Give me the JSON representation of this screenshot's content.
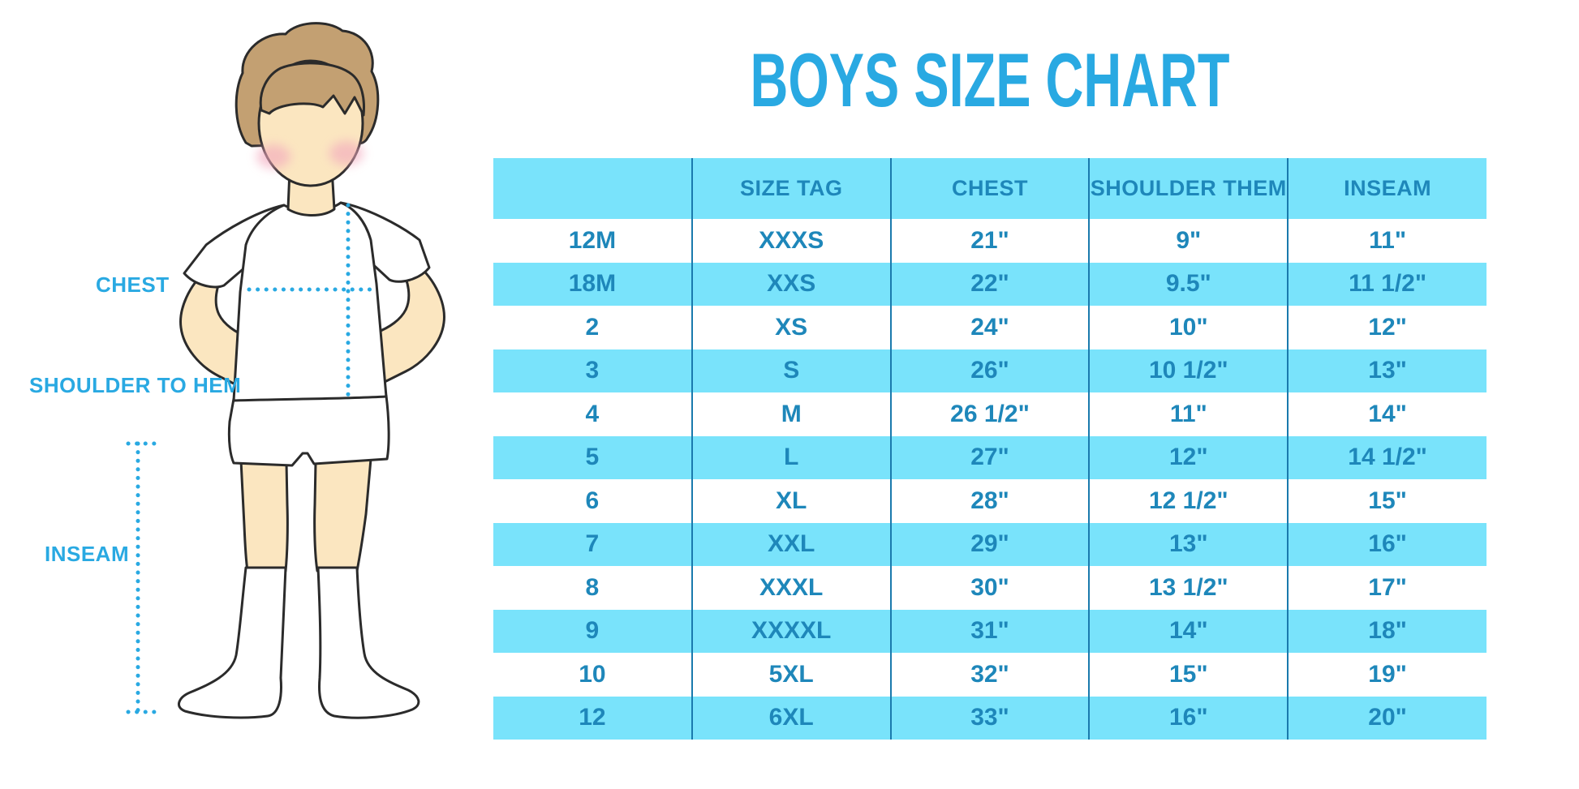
{
  "title": "BOYS SIZE CHART",
  "figure": {
    "labels": {
      "chest": "CHEST",
      "shoulder_to_hem": "SHOULDER TO HEM",
      "inseam": "INSEAM"
    }
  },
  "table": {
    "headers": [
      "",
      "SIZE TAG",
      "CHEST",
      "SHOULDER THEM",
      "INSEAM"
    ],
    "rows": [
      [
        "12M",
        "XXXS",
        "21\"",
        "9\"",
        "11\""
      ],
      [
        "18M",
        "XXS",
        "22\"",
        "9.5\"",
        "11 1/2\""
      ],
      [
        "2",
        "XS",
        "24\"",
        "10\"",
        "12\""
      ],
      [
        "3",
        "S",
        "26\"",
        "10 1/2\"",
        "13\""
      ],
      [
        "4",
        "M",
        "26 1/2\"",
        "11\"",
        "14\""
      ],
      [
        "5",
        "L",
        "27\"",
        "12\"",
        "14 1/2\""
      ],
      [
        "6",
        "XL",
        "28\"",
        "12 1/2\"",
        "15\""
      ],
      [
        "7",
        "XXL",
        "29\"",
        "13\"",
        "16\""
      ],
      [
        "8",
        "XXXL",
        "30\"",
        "13 1/2\"",
        "17\""
      ],
      [
        "9",
        "XXXXL",
        "31\"",
        "14\"",
        "18\""
      ],
      [
        "10",
        "5XL",
        "32\"",
        "15\"",
        "19\""
      ],
      [
        "12",
        "6XL",
        "33\"",
        "16\"",
        "20\""
      ]
    ]
  },
  "colors": {
    "accent_blue": "#29A9E2",
    "band_cyan": "#79E3FB",
    "table_text": "#1E87BA",
    "separator_blue": "#1A7AAD",
    "skin": "#FBE6C0",
    "hair_brown": "#C3A072",
    "cheek_pink": "#F3A9BE"
  }
}
